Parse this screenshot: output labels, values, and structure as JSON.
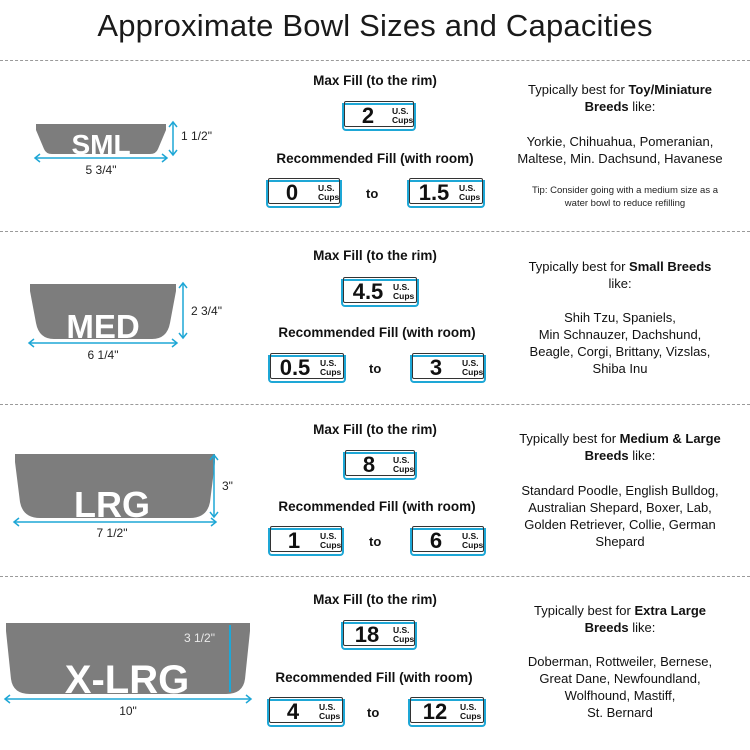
{
  "title": "Approximate Bowl Sizes and Capacities",
  "labels": {
    "max_fill": "Max Fill (to the rim)",
    "recommended_fill": "Recommended Fill (with room)",
    "to": "to",
    "unit_line1": "U.S.",
    "unit_line2": "Cups",
    "best_prefix": "Typically best for"
  },
  "colors": {
    "bowl": "#7d7d7d",
    "accent": "#1ea7d6",
    "dimension": "#1ea7d6"
  },
  "sizes": [
    {
      "label": "SML",
      "height": "1 1/2\"",
      "width": "5 3/4\"",
      "max_fill": "2",
      "rec_min": "0",
      "rec_max": "1.5",
      "best_bold": "Toy/Miniature",
      "best_bold_2": "Breeds",
      "best_suffix": "like:",
      "breeds_line1": "Yorkie, Chihuahua, Pomeranian,",
      "breeds_line2": "Maltese, Min. Dachsund, Havanese",
      "breeds_line3": "",
      "breeds_line4": "",
      "tip_line1": "Tip: Consider going with a medium size as a",
      "tip_line2": "water bowl to reduce refilling"
    },
    {
      "label": "MED",
      "height": "2 3/4\"",
      "width": "6 1/4\"",
      "max_fill": "4.5",
      "rec_min": "0.5",
      "rec_max": "3",
      "best_bold": "Small Breeds",
      "best_suffix": "like:",
      "breeds_line1": "Shih Tzu, Spaniels,",
      "breeds_line2": "Min Schnauzer, Dachshund,",
      "breeds_line3": "Beagle, Corgi, Brittany, Vizslas,",
      "breeds_line4": "Shiba Inu"
    },
    {
      "label": "LRG",
      "height": "3\"",
      "width": "7 1/2\"",
      "max_fill": "8",
      "rec_min": "1",
      "rec_max": "6",
      "best_bold": "Medium & Large",
      "best_bold_2": "Breeds",
      "best_suffix": "like:",
      "breeds_line1": "Standard Poodle, English Bulldog,",
      "breeds_line2": "Australian Shepard, Boxer, Lab,",
      "breeds_line3": "Golden Retriever, Collie, German",
      "breeds_line4": "Shepard"
    },
    {
      "label": "X-LRG",
      "height": "3 1/2\"",
      "width": "10\"",
      "max_fill": "18",
      "rec_min": "4",
      "rec_max": "12",
      "best_bold": "Extra Large",
      "best_bold_2": "Breeds",
      "best_suffix": "like:",
      "breeds_line1": "Doberman, Rottweiler, Bernese,",
      "breeds_line2": "Great Dane, Newfoundland,",
      "breeds_line3": "Wolfhound, Mastiff,",
      "breeds_line4": "St. Bernard"
    }
  ]
}
